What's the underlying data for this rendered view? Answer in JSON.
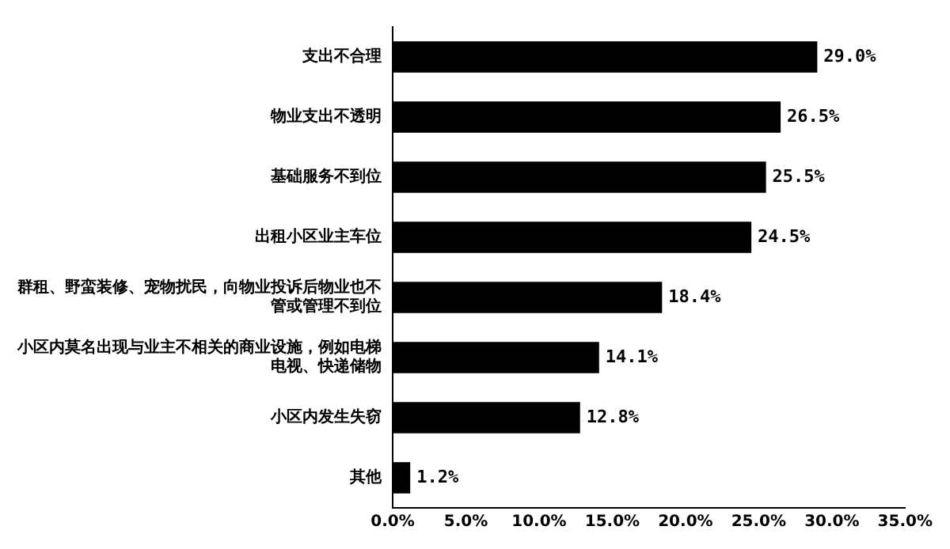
{
  "chart_data": {
    "type": "bar",
    "orientation": "horizontal",
    "categories": [
      "支出不合理",
      "物业支出不透明",
      "基础服务不到位",
      "出租小区业主车位",
      "群租、野蛮装修、宠物扰民，向物业投诉后物业也不管或管理不到位",
      "小区内莫名出现与业主不相关的商业设施，例如电梯电视、快递储物",
      "小区内发生失窃",
      "其他"
    ],
    "values": [
      29.0,
      26.5,
      25.5,
      24.5,
      18.4,
      14.1,
      12.8,
      1.2
    ],
    "value_labels": [
      "29.0%",
      "26.5%",
      "25.5%",
      "24.5%",
      "18.4%",
      "14.1%",
      "12.8%",
      "1.2%"
    ],
    "color": "#000000",
    "xlim": [
      0,
      35
    ],
    "xticks": [
      {
        "value": 0,
        "label": "0.0%"
      },
      {
        "value": 5,
        "label": "5.0%"
      },
      {
        "value": 10,
        "label": "10.0%"
      },
      {
        "value": 15,
        "label": "15.0%"
      },
      {
        "value": 20,
        "label": "20.0%"
      },
      {
        "value": 25,
        "label": "25.0%"
      },
      {
        "value": 30,
        "label": "30.0%"
      },
      {
        "value": 35,
        "label": "35.0%"
      }
    ],
    "grid": false,
    "legend": false
  }
}
